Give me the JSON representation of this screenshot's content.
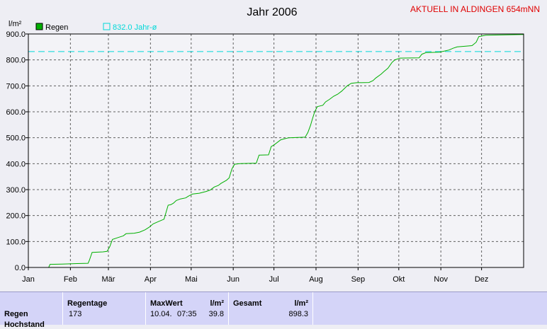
{
  "chart_data": {
    "type": "line",
    "title": "Jahr 2006",
    "ylabel": "l/m²",
    "xlabel": "",
    "corner_note": "AKTUELL IN ALDINGEN 654mNN",
    "ylim": [
      0,
      900
    ],
    "yticks": [
      "0.0",
      "100.0",
      "200.0",
      "300.0",
      "400.0",
      "500.0",
      "600.0",
      "700.0",
      "800.0",
      "900.0"
    ],
    "xlim": [
      0,
      365
    ],
    "x_unit": "day of year",
    "month_ticks": [
      {
        "label": "Jan",
        "day": 0
      },
      {
        "label": "Feb",
        "day": 31
      },
      {
        "label": "Mär",
        "day": 59
      },
      {
        "label": "Apr",
        "day": 90
      },
      {
        "label": "Mai",
        "day": 120
      },
      {
        "label": "Jun",
        "day": 151
      },
      {
        "label": "Jul",
        "day": 181
      },
      {
        "label": "Aug",
        "day": 212
      },
      {
        "label": "Sep",
        "day": 243
      },
      {
        "label": "Okt",
        "day": 273
      },
      {
        "label": "Nov",
        "day": 304
      },
      {
        "label": "Dez",
        "day": 334
      }
    ],
    "grid": true,
    "legend_placement": "top-left",
    "series": [
      {
        "name": "Regen",
        "color": "#00b000",
        "legend_icon": "filled-square",
        "points": [
          [
            15,
            0
          ],
          [
            16,
            12
          ],
          [
            25,
            13
          ],
          [
            36,
            15
          ],
          [
            44,
            16
          ],
          [
            45,
            28
          ],
          [
            47,
            58
          ],
          [
            55,
            60
          ],
          [
            58,
            62
          ],
          [
            60,
            80
          ],
          [
            62,
            108
          ],
          [
            66,
            115
          ],
          [
            70,
            122
          ],
          [
            72,
            130
          ],
          [
            78,
            132
          ],
          [
            82,
            136
          ],
          [
            86,
            145
          ],
          [
            89,
            155
          ],
          [
            92,
            168
          ],
          [
            96,
            177
          ],
          [
            100,
            186
          ],
          [
            103,
            240
          ],
          [
            105,
            242
          ],
          [
            107,
            248
          ],
          [
            109,
            258
          ],
          [
            112,
            264
          ],
          [
            116,
            268
          ],
          [
            118,
            275
          ],
          [
            121,
            283
          ],
          [
            126,
            286
          ],
          [
            131,
            293
          ],
          [
            134,
            298
          ],
          [
            137,
            310
          ],
          [
            140,
            316
          ],
          [
            142,
            324
          ],
          [
            146,
            336
          ],
          [
            148,
            345
          ],
          [
            150,
            380
          ],
          [
            152,
            398
          ],
          [
            156,
            400
          ],
          [
            168,
            402
          ],
          [
            170,
            433
          ],
          [
            177,
            434
          ],
          [
            179,
            466
          ],
          [
            181,
            472
          ],
          [
            186,
            492
          ],
          [
            188,
            495
          ],
          [
            192,
            500
          ],
          [
            204,
            502
          ],
          [
            206,
            520
          ],
          [
            208,
            548
          ],
          [
            209,
            566
          ],
          [
            211,
            600
          ],
          [
            213,
            620
          ],
          [
            217,
            625
          ],
          [
            219,
            638
          ],
          [
            222,
            648
          ],
          [
            225,
            660
          ],
          [
            228,
            668
          ],
          [
            231,
            680
          ],
          [
            233,
            690
          ],
          [
            235,
            700
          ],
          [
            238,
            710
          ],
          [
            242,
            712
          ],
          [
            251,
            713
          ],
          [
            254,
            720
          ],
          [
            256,
            730
          ],
          [
            260,
            745
          ],
          [
            262,
            755
          ],
          [
            265,
            768
          ],
          [
            268,
            790
          ],
          [
            270,
            800
          ],
          [
            274,
            807
          ],
          [
            288,
            808
          ],
          [
            290,
            822
          ],
          [
            293,
            828
          ],
          [
            303,
            830
          ],
          [
            305,
            832
          ],
          [
            310,
            838
          ],
          [
            313,
            845
          ],
          [
            316,
            850
          ],
          [
            320,
            852
          ],
          [
            327,
            855
          ],
          [
            330,
            868
          ],
          [
            332,
            890
          ],
          [
            337,
            895
          ],
          [
            365,
            898
          ]
        ]
      },
      {
        "name": "832.0 Jahr-ø",
        "color": "#00d8d8",
        "legend_icon": "hollow-square",
        "style": "dashed",
        "value": 832.0
      }
    ]
  },
  "stats": {
    "header_regentage": "Regentage",
    "header_maxwert": "MaxWert",
    "header_gesamt": "Gesamt",
    "unit": "l/m²",
    "row_label": "Regen",
    "regentage": "173",
    "max_date": "10.04.",
    "max_time": "07:35",
    "max_value": "39.8",
    "gesamt": "898.3",
    "next_row_label": "Hochstand"
  }
}
